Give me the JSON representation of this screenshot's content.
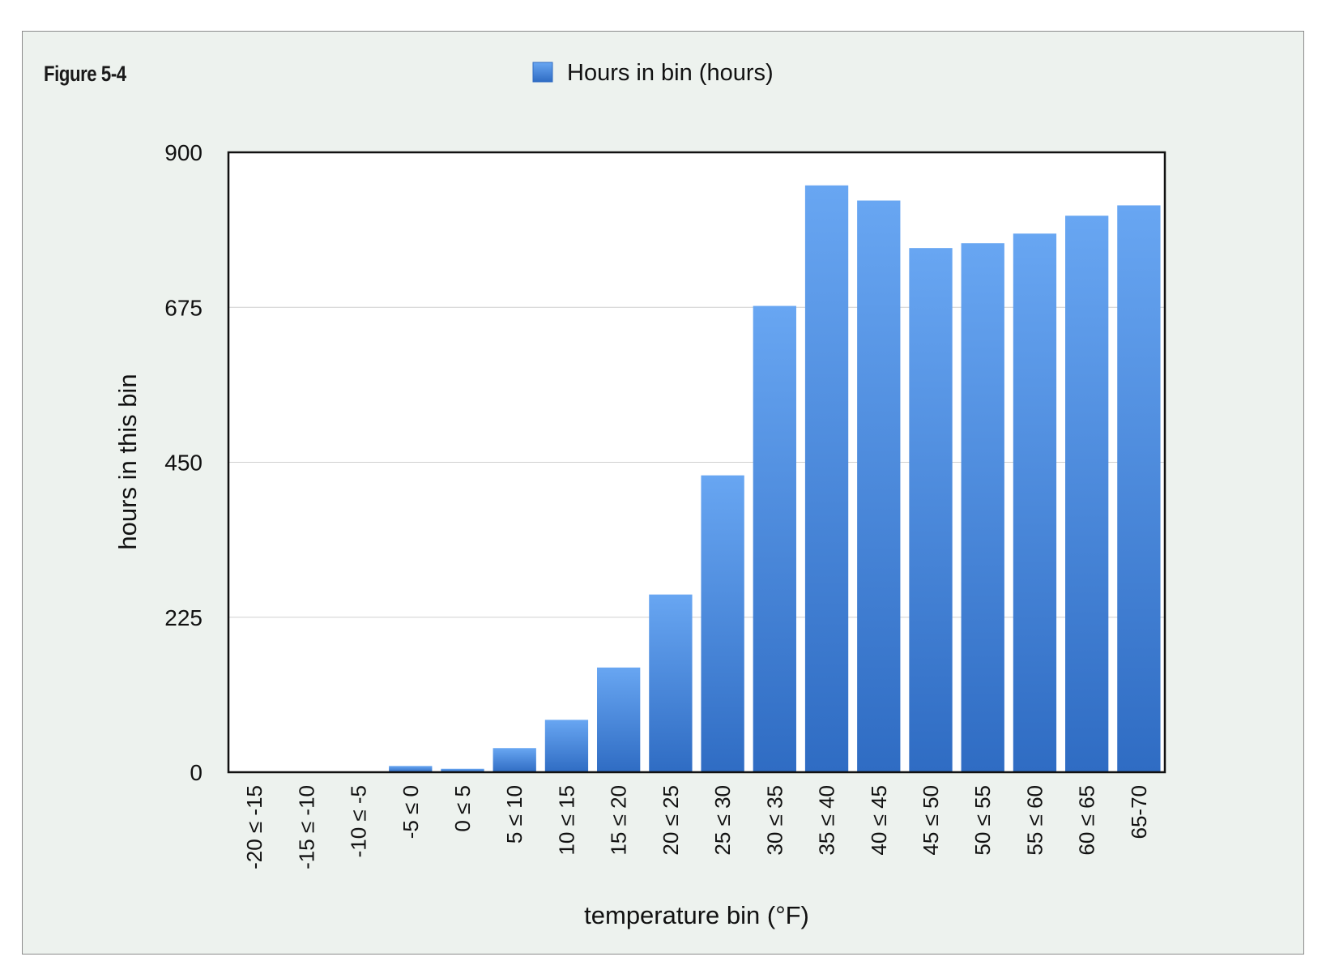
{
  "figure_label": "Figure 5-4",
  "colors": {
    "bar_top": "#68a6f2",
    "bar_bottom": "#2f6cc3",
    "panel_bg": "#edf2ee",
    "plot_bg": "#ffffff",
    "gridline": "#cfcfcf"
  },
  "chart_data": {
    "type": "bar",
    "title": "",
    "xlabel": "temperature bin (°F)",
    "ylabel": "hours in this bin",
    "ylim": [
      0,
      900
    ],
    "yticks": [
      0,
      225,
      450,
      675,
      900
    ],
    "grid": true,
    "legend_placement": "top-center",
    "categories": [
      "-20 ≤ -15",
      "-15 ≤ -10",
      "-10 ≤ -5",
      "-5 ≤ 0",
      "0 ≤ 5",
      "5 ≤ 10",
      "10 ≤ 15",
      "15 ≤ 20",
      "20 ≤ 25",
      "25 ≤ 30",
      "30 ≤ 35",
      "35 ≤ 40",
      "40 ≤ 45",
      "45 ≤ 50",
      "50 ≤ 55",
      "55 ≤ 60",
      "60 ≤ 65",
      "65-70"
    ],
    "series": [
      {
        "name": "Hours in bin (hours)",
        "values": [
          0,
          0,
          0,
          9,
          5,
          35,
          76,
          152,
          258,
          431,
          677,
          852,
          830,
          761,
          768,
          782,
          808,
          823
        ]
      }
    ]
  }
}
